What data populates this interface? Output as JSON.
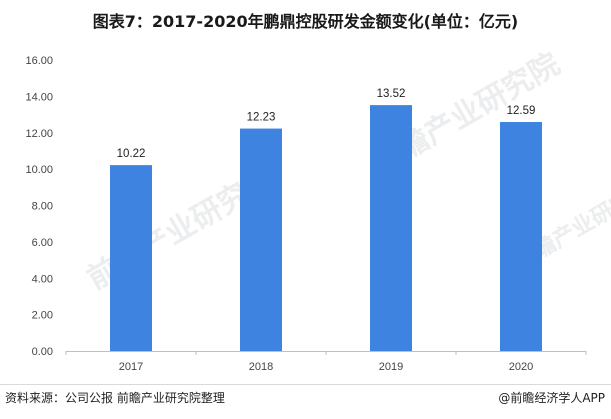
{
  "title": "图表7：2017-2020年鹏鼎控股研发金额变化(单位：亿元)",
  "source": "资料来源：公司公报 前瞻产业研究院整理",
  "brand": "@前瞻经济学人APP",
  "watermark_text": "前瞻产业研究院",
  "colors": {
    "bar": "#3f83e0",
    "axis": "#bfbfbf"
  },
  "chart_data": {
    "type": "bar",
    "categories": [
      "2017",
      "2018",
      "2019",
      "2020"
    ],
    "values": [
      10.22,
      12.23,
      13.52,
      12.59
    ],
    "value_labels": [
      "10.22",
      "12.23",
      "13.52",
      "12.59"
    ],
    "ylim": [
      0,
      16
    ],
    "yticks": [
      "0.00",
      "2.00",
      "4.00",
      "6.00",
      "8.00",
      "10.00",
      "12.00",
      "14.00",
      "16.00"
    ],
    "xlabel": "",
    "ylabel": "",
    "grid": false,
    "legend": "none"
  }
}
